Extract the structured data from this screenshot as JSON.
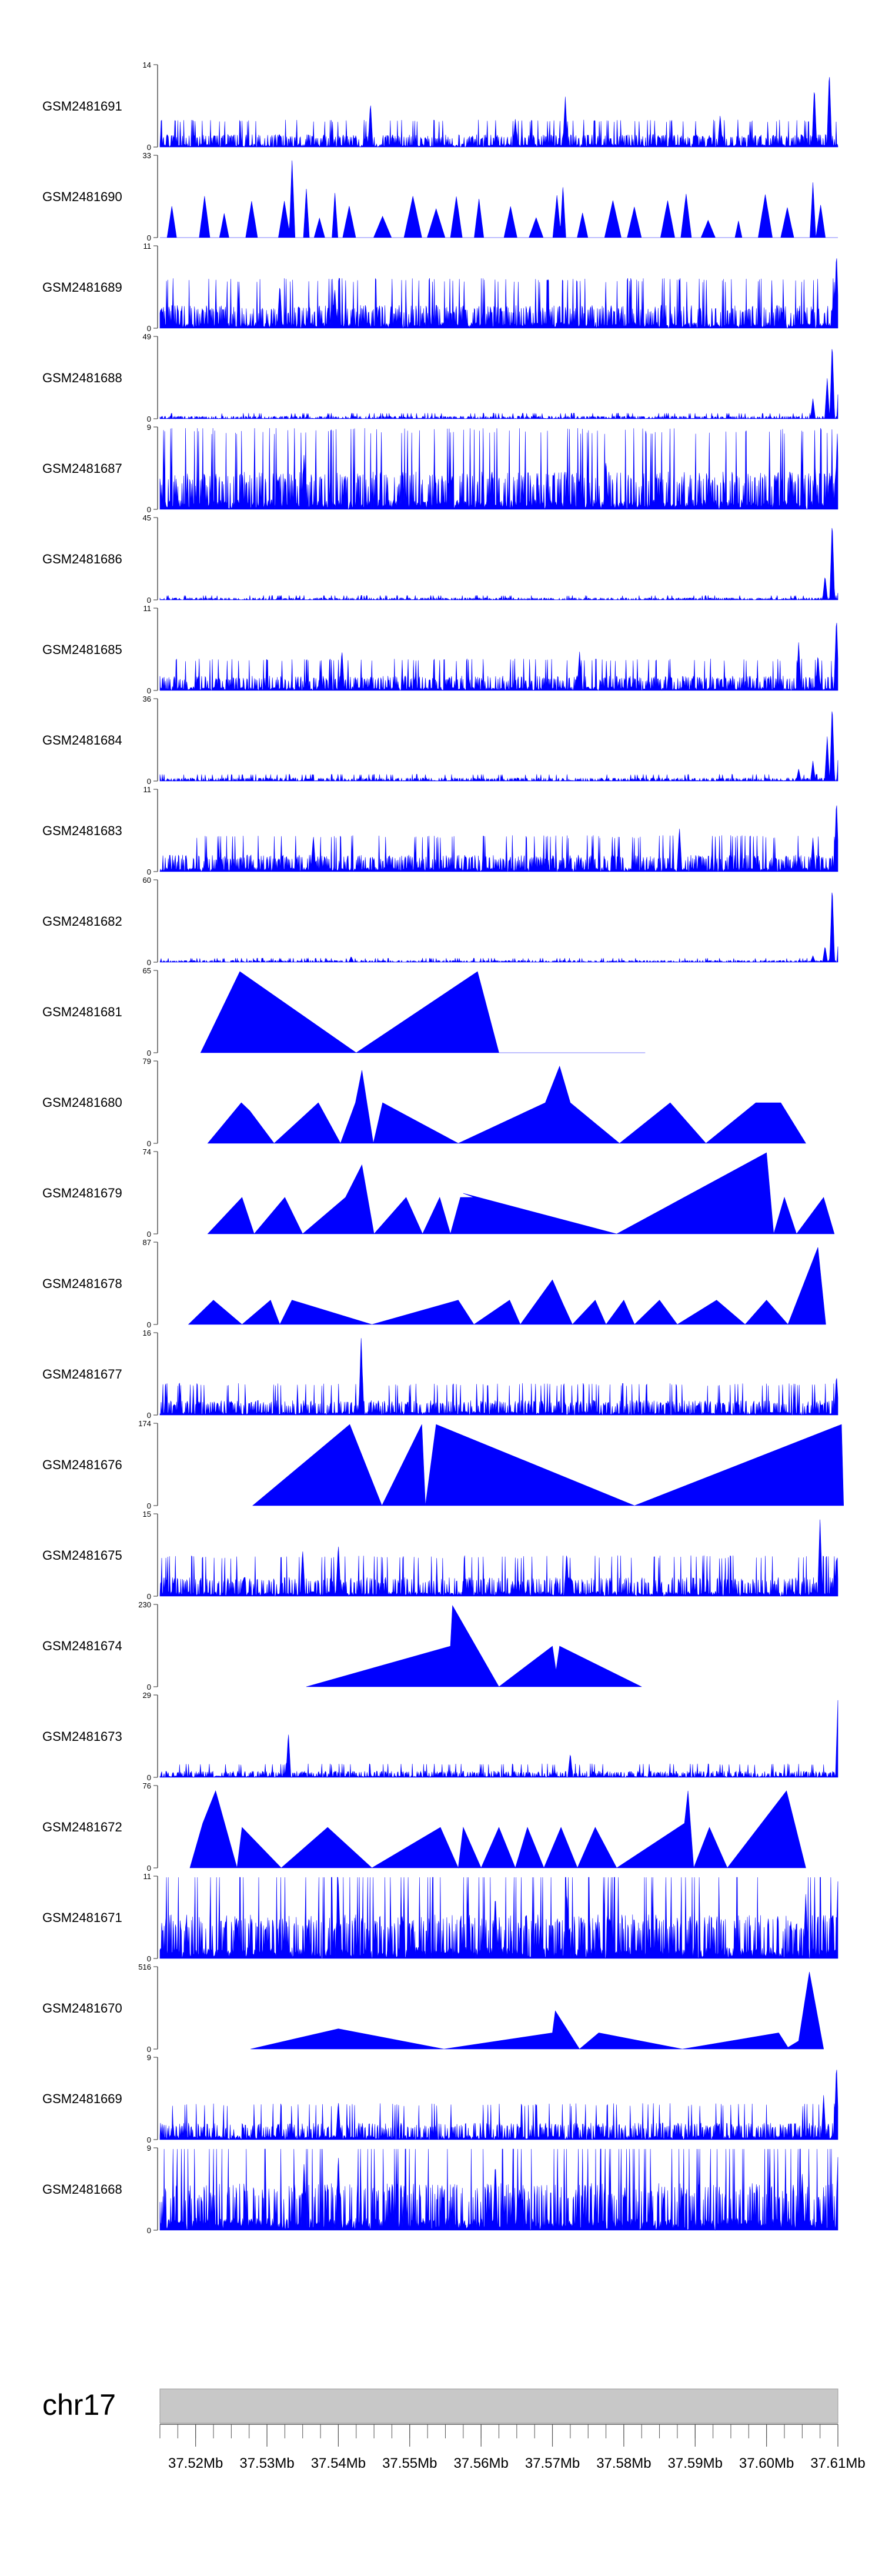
{
  "chart_data": {
    "type": "area",
    "title": "",
    "xlabel": "",
    "ylabel": "",
    "grid": false,
    "color": "#0000ff",
    "axis_color": "#555555",
    "x_range_mb": [
      37.515,
      37.61
    ],
    "x_tick_labels": [
      {
        "mb": 37.52,
        "label": "37.52Mb"
      },
      {
        "mb": 37.53,
        "label": "37.53Mb"
      },
      {
        "mb": 37.54,
        "label": "37.54Mb"
      },
      {
        "mb": 37.55,
        "label": "37.55Mb"
      },
      {
        "mb": 37.56,
        "label": "37.56Mb"
      },
      {
        "mb": 37.57,
        "label": "37.57Mb"
      },
      {
        "mb": 37.58,
        "label": "37.58Mb"
      },
      {
        "mb": 37.59,
        "label": "37.59Mb"
      },
      {
        "mb": 37.6,
        "label": "37.60Mb"
      },
      {
        "mb": 37.61,
        "label": "37.61Mb"
      }
    ],
    "minor_tick_step_mb": 0.0025,
    "chromosome": {
      "label": "chr17",
      "fill": "#c8c8c8"
    },
    "tracks": [
      {
        "name": "GSM2481691",
        "ymin": 0,
        "ymax": 14,
        "style": "noise",
        "base": 0.12,
        "seed": 1,
        "peaks": [
          [
            37.5445,
            0.55
          ],
          [
            37.5648,
            0.35
          ],
          [
            37.5718,
            0.62
          ],
          [
            37.5935,
            0.4
          ],
          [
            37.6067,
            0.75
          ],
          [
            37.6088,
            0.95
          ]
        ]
      },
      {
        "name": "GSM2481690",
        "ymin": 0,
        "ymax": 33,
        "style": "sparse",
        "step": 1.4,
        "spread": 0.35,
        "seed": 2,
        "peaks": [
          [
            37.5335,
            0.95
          ],
          [
            37.5355,
            0.6
          ],
          [
            37.5395,
            0.55
          ],
          [
            37.5715,
            0.62
          ],
          [
            37.6065,
            0.68
          ]
        ]
      },
      {
        "name": "GSM2481689",
        "ymin": 0,
        "ymax": 11,
        "style": "noise",
        "base": 0.22,
        "seed": 3,
        "peaks": [
          [
            37.5318,
            0.55
          ],
          [
            37.5395,
            0.5
          ],
          [
            37.6098,
            0.95
          ],
          [
            37.6105,
            0.6
          ]
        ]
      },
      {
        "name": "GSM2481688",
        "ymin": 0,
        "ymax": 49,
        "style": "noise",
        "base": 0.025,
        "seed": 4,
        "peaks": [
          [
            37.6065,
            0.25
          ],
          [
            37.6085,
            0.5
          ],
          [
            37.6092,
            0.95
          ],
          [
            37.6102,
            0.7
          ],
          [
            37.6107,
            0.4
          ]
        ]
      },
      {
        "name": "GSM2481687",
        "ymin": 0,
        "ymax": 9,
        "style": "noise",
        "base": 0.36,
        "seed": 5,
        "peaks": [
          [
            37.5352,
            0.7
          ],
          [
            37.5775,
            0.62
          ],
          [
            37.6068,
            0.55
          ],
          [
            37.6099,
            0.9
          ]
        ]
      },
      {
        "name": "GSM2481686",
        "ymin": 0,
        "ymax": 45,
        "style": "noise",
        "base": 0.02,
        "seed": 6,
        "peaks": [
          [
            37.6082,
            0.3
          ],
          [
            37.6092,
            0.98
          ],
          [
            37.6103,
            0.6
          ],
          [
            37.6108,
            0.35
          ]
        ]
      },
      {
        "name": "GSM2481685",
        "ymin": 0,
        "ymax": 11,
        "style": "noise",
        "base": 0.14,
        "seed": 7,
        "peaks": [
          [
            37.5405,
            0.5
          ],
          [
            37.5738,
            0.48
          ],
          [
            37.6045,
            0.6
          ],
          [
            37.6072,
            0.45
          ],
          [
            37.6098,
            0.92
          ]
        ]
      },
      {
        "name": "GSM2481684",
        "ymin": 0,
        "ymax": 36,
        "style": "noise",
        "base": 0.03,
        "seed": 8,
        "peaks": [
          [
            37.6045,
            0.15
          ],
          [
            37.6065,
            0.25
          ],
          [
            37.6085,
            0.55
          ],
          [
            37.6092,
            0.95
          ],
          [
            37.6102,
            0.6
          ]
        ]
      },
      {
        "name": "GSM2481683",
        "ymin": 0,
        "ymax": 11,
        "style": "noise",
        "base": 0.16,
        "seed": 9,
        "peaks": [
          [
            37.5365,
            0.45
          ],
          [
            37.5878,
            0.55
          ],
          [
            37.6065,
            0.42
          ],
          [
            37.6098,
            0.9
          ]
        ]
      },
      {
        "name": "GSM2481682",
        "ymin": 0,
        "ymax": 60,
        "style": "noise",
        "base": 0.018,
        "seed": 10,
        "peaks": [
          [
            37.5418,
            0.07
          ],
          [
            37.6065,
            0.08
          ],
          [
            37.6082,
            0.2
          ],
          [
            37.6092,
            0.95
          ],
          [
            37.6102,
            0.45
          ]
        ]
      },
      {
        "name": "GSM2481681",
        "ymin": 0,
        "ymax": 65,
        "style": "points",
        "points": [
          [
            37.5207,
            0
          ],
          [
            37.5262,
            1.0
          ],
          [
            37.5425,
            0
          ],
          [
            37.5595,
            1.0
          ],
          [
            37.5625,
            0.0
          ],
          [
            37.583,
            0
          ]
        ]
      },
      {
        "name": "GSM2481680",
        "ymin": 0,
        "ymax": 79,
        "style": "points",
        "points": [
          [
            37.5217,
            0
          ],
          [
            37.5264,
            0.5
          ],
          [
            37.5276,
            0.4
          ],
          [
            37.531,
            0
          ],
          [
            37.5372,
            0.5
          ],
          [
            37.5403,
            0
          ],
          [
            37.5424,
            0.5
          ],
          [
            37.5433,
            0.9
          ],
          [
            37.544,
            0.5
          ],
          [
            37.5449,
            0
          ],
          [
            37.5462,
            0.5
          ],
          [
            37.5568,
            0
          ],
          [
            37.569,
            0.5
          ],
          [
            37.571,
            0.95
          ],
          [
            37.5725,
            0.5
          ],
          [
            37.5794,
            0.0
          ],
          [
            37.5865,
            0.5
          ],
          [
            37.5915,
            0
          ],
          [
            37.5985,
            0.5
          ],
          [
            37.602,
            0.5
          ],
          [
            37.6055,
            0
          ]
        ]
      },
      {
        "name": "GSM2481679",
        "ymin": 0,
        "ymax": 74,
        "style": "points",
        "points": [
          [
            37.5217,
            0
          ],
          [
            37.5265,
            0.45
          ],
          [
            37.5282,
            0
          ],
          [
            37.5325,
            0.45
          ],
          [
            37.535,
            0
          ],
          [
            37.541,
            0.45
          ],
          [
            37.5433,
            0.85
          ],
          [
            37.545,
            0
          ],
          [
            37.5495,
            0.45
          ],
          [
            37.5518,
            0
          ],
          [
            37.5542,
            0.45
          ],
          [
            37.5557,
            0
          ],
          [
            37.5571,
            0.45
          ],
          [
            37.559,
            0.45
          ],
          [
            37.5575,
            0.5
          ],
          [
            37.579,
            0
          ],
          [
            37.6,
            1.0
          ],
          [
            37.601,
            0
          ],
          [
            37.6025,
            0.45
          ],
          [
            37.6042,
            0
          ],
          [
            37.608,
            0.45
          ],
          [
            37.6095,
            0
          ]
        ]
      },
      {
        "name": "GSM2481678",
        "ymin": 0,
        "ymax": 87,
        "style": "points",
        "points": [
          [
            37.519,
            0
          ],
          [
            37.5225,
            0.3
          ],
          [
            37.5265,
            0
          ],
          [
            37.5305,
            0.3
          ],
          [
            37.5318,
            0
          ],
          [
            37.5335,
            0.3
          ],
          [
            37.5447,
            0
          ],
          [
            37.5568,
            0.3
          ],
          [
            37.559,
            0
          ],
          [
            37.564,
            0.3
          ],
          [
            37.5655,
            0
          ],
          [
            37.57,
            0.55
          ],
          [
            37.5715,
            0.25
          ],
          [
            37.5728,
            0
          ],
          [
            37.576,
            0.3
          ],
          [
            37.5775,
            0
          ],
          [
            37.58,
            0.3
          ],
          [
            37.5815,
            0
          ],
          [
            37.585,
            0.3
          ],
          [
            37.5875,
            0
          ],
          [
            37.593,
            0.3
          ],
          [
            37.597,
            0
          ],
          [
            37.6,
            0.3
          ],
          [
            37.603,
            0
          ],
          [
            37.6072,
            0.95
          ],
          [
            37.6083,
            0
          ]
        ]
      },
      {
        "name": "GSM2481677",
        "ymin": 0,
        "ymax": 16,
        "style": "noise",
        "base": 0.14,
        "seed": 11,
        "peaks": [
          [
            37.5432,
            0.97
          ],
          [
            37.6098,
            0.5
          ]
        ]
      },
      {
        "name": "GSM2481676",
        "ymin": 0,
        "ymax": 174,
        "style": "points",
        "points": [
          [
            37.528,
            0
          ],
          [
            37.5416,
            1.0
          ],
          [
            37.5461,
            0
          ],
          [
            37.5517,
            1.0
          ],
          [
            37.5522,
            0
          ],
          [
            37.5537,
            1.0
          ],
          [
            37.5815,
            0
          ],
          [
            37.6105,
            1.0
          ],
          [
            37.6108,
            0
          ]
        ]
      },
      {
        "name": "GSM2481675",
        "ymin": 0,
        "ymax": 15,
        "style": "noise",
        "base": 0.18,
        "seed": 12,
        "peaks": [
          [
            37.535,
            0.58
          ],
          [
            37.54,
            0.65
          ],
          [
            37.572,
            0.55
          ],
          [
            37.6075,
            0.95
          ],
          [
            37.6098,
            0.5
          ]
        ]
      },
      {
        "name": "GSM2481674",
        "ymin": 0,
        "ymax": 230,
        "style": "points",
        "points": [
          [
            37.5355,
            0
          ],
          [
            37.5557,
            0.5
          ],
          [
            37.556,
            1.0
          ],
          [
            37.5625,
            0
          ],
          [
            37.57,
            0.5
          ],
          [
            37.5705,
            0.2
          ],
          [
            37.571,
            0.5
          ],
          [
            37.5825,
            0
          ]
        ]
      },
      {
        "name": "GSM2481673",
        "ymin": 0,
        "ymax": 29,
        "style": "noise",
        "base": 0.06,
        "seed": 13,
        "peaks": [
          [
            37.533,
            0.55
          ],
          [
            37.5725,
            0.3
          ],
          [
            37.61,
            0.95
          ]
        ]
      },
      {
        "name": "GSM2481672",
        "ymin": 0,
        "ymax": 76,
        "style": "points",
        "points": [
          [
            37.5192,
            0
          ],
          [
            37.521,
            0.55
          ],
          [
            37.5228,
            0.95
          ],
          [
            37.5258,
            0
          ],
          [
            37.5265,
            0.5
          ],
          [
            37.532,
            0
          ],
          [
            37.5385,
            0.5
          ],
          [
            37.5447,
            0
          ],
          [
            37.5543,
            0.5
          ],
          [
            37.5568,
            0
          ],
          [
            37.5575,
            0.5
          ],
          [
            37.56,
            0
          ],
          [
            37.5625,
            0.5
          ],
          [
            37.5648,
            0
          ],
          [
            37.5665,
            0.5
          ],
          [
            37.5688,
            0
          ],
          [
            37.5712,
            0.5
          ],
          [
            37.5735,
            0
          ],
          [
            37.576,
            0.5
          ],
          [
            37.579,
            0
          ],
          [
            37.5885,
            0.55
          ],
          [
            37.589,
            0.95
          ],
          [
            37.5898,
            0
          ],
          [
            37.592,
            0.5
          ],
          [
            37.5945,
            0
          ],
          [
            37.6028,
            0.95
          ],
          [
            37.6055,
            0
          ]
        ]
      },
      {
        "name": "GSM2481671",
        "ymin": 0,
        "ymax": 11,
        "style": "noise",
        "base": 0.42,
        "seed": 14,
        "peaks": [
          [
            37.54,
            0.95
          ],
          [
            37.562,
            0.8
          ],
          [
            37.572,
            0.85
          ],
          [
            37.6055,
            0.8
          ],
          [
            37.61,
            0.95
          ]
        ]
      },
      {
        "name": "GSM2481670",
        "ymin": 0,
        "ymax": 516,
        "style": "points",
        "points": [
          [
            37.5277,
            0
          ],
          [
            37.54,
            0.25
          ],
          [
            37.5548,
            0
          ],
          [
            37.57,
            0.2
          ],
          [
            37.5704,
            0.47
          ],
          [
            37.5738,
            0.0
          ],
          [
            37.5765,
            0.2
          ],
          [
            37.5882,
            0
          ],
          [
            37.6017,
            0.2
          ],
          [
            37.603,
            0.02
          ],
          [
            37.6045,
            0.1
          ],
          [
            37.606,
            0.95
          ],
          [
            37.608,
            0
          ]
        ]
      },
      {
        "name": "GSM2481669",
        "ymin": 0,
        "ymax": 9,
        "style": "noise",
        "base": 0.16,
        "seed": 15,
        "peaks": [
          [
            37.54,
            0.48
          ],
          [
            37.608,
            0.55
          ],
          [
            37.6098,
            0.95
          ]
        ]
      },
      {
        "name": "GSM2481668",
        "ymin": 0,
        "ymax": 9,
        "style": "noise",
        "base": 0.45,
        "seed": 16,
        "peaks": [
          [
            37.5352,
            0.85
          ],
          [
            37.54,
            0.95
          ],
          [
            37.562,
            0.85
          ],
          [
            37.605,
            0.7
          ],
          [
            37.61,
            0.9
          ]
        ]
      }
    ]
  }
}
